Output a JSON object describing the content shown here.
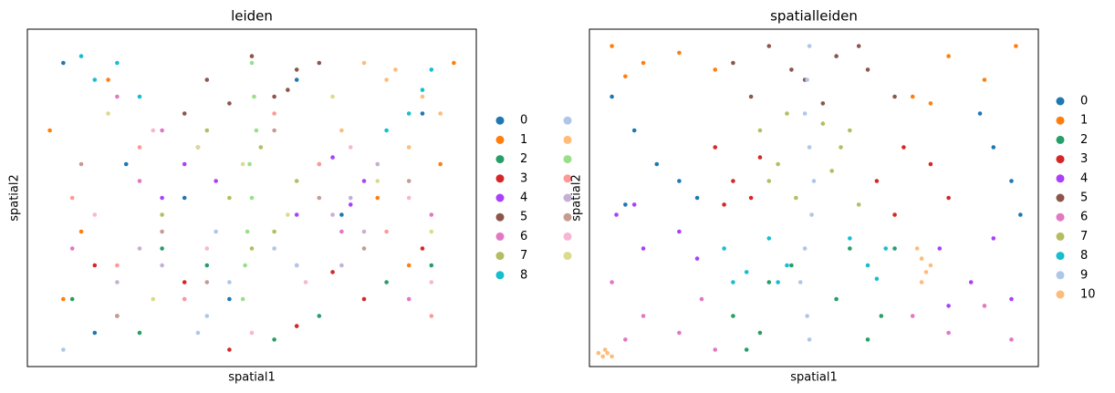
{
  "chart_data": [
    {
      "type": "scatter",
      "title": "leiden",
      "x_label": "spatial1",
      "y_label": "spatial2",
      "xlim": [
        0,
        100
      ],
      "ylim": [
        0,
        100
      ],
      "legend_columns": 2,
      "series": [
        {
          "name": "0",
          "color": "#1f77b4",
          "x": [
            8,
            22,
            45,
            70,
            88,
            15,
            60,
            35
          ],
          "values": [
            90,
            60,
            20,
            45,
            75,
            10,
            85,
            50
          ]
        },
        {
          "name": "1",
          "color": "#ff7f0e",
          "x": [
            5,
            12,
            92,
            85,
            18,
            95,
            8,
            78
          ],
          "values": [
            70,
            40,
            60,
            30,
            85,
            90,
            20,
            50
          ]
        },
        {
          "name": "2",
          "color": "#279e68",
          "x": [
            10,
            25,
            40,
            65,
            80,
            55,
            30,
            90
          ],
          "values": [
            20,
            10,
            30,
            15,
            25,
            8,
            35,
            30
          ]
        },
        {
          "name": "3",
          "color": "#d62728",
          "x": [
            20,
            35,
            60,
            75,
            88,
            45,
            15,
            68
          ],
          "values": [
            15,
            25,
            12,
            20,
            35,
            5,
            30,
            28
          ]
        },
        {
          "name": "4",
          "color": "#aa40fc",
          "x": [
            35,
            42,
            30,
            68,
            75,
            60,
            38,
            72
          ],
          "values": [
            60,
            55,
            50,
            62,
            55,
            45,
            65,
            48
          ]
        },
        {
          "name": "5",
          "color": "#8c564b",
          "x": [
            40,
            50,
            60,
            45,
            55,
            65,
            35,
            58
          ],
          "values": [
            85,
            92,
            88,
            78,
            80,
            90,
            75,
            82
          ]
        },
        {
          "name": "6",
          "color": "#e377c2",
          "x": [
            10,
            25,
            70,
            85,
            30,
            60,
            20,
            90
          ],
          "values": [
            35,
            55,
            40,
            20,
            70,
            30,
            80,
            45
          ]
        },
        {
          "name": "7",
          "color": "#b5bd61",
          "x": [
            45,
            55,
            40,
            60,
            50,
            30,
            65,
            52
          ],
          "values": [
            50,
            40,
            70,
            55,
            35,
            45,
            60,
            65
          ]
        },
        {
          "name": "8",
          "color": "#17becf",
          "x": [
            15,
            20,
            25,
            80,
            85,
            90,
            12,
            88
          ],
          "values": [
            85,
            90,
            80,
            70,
            75,
            88,
            92,
            82
          ]
        },
        {
          "name": null,
          "color": "#aec7e8",
          "x": [
            40,
            45,
            35,
            55,
            8,
            42,
            60,
            38
          ],
          "values": [
            15,
            25,
            20,
            35,
            5,
            40,
            30,
            10
          ]
        },
        {
          "name": null,
          "color": "#ffbb78",
          "x": [
            80,
            88,
            75,
            92,
            70,
            85,
            82,
            78
          ],
          "values": [
            85,
            80,
            90,
            75,
            70,
            65,
            88,
            60
          ]
        },
        {
          "name": null,
          "color": "#98df8a",
          "x": [
            50,
            50.5,
            51,
            49.5,
            50,
            49,
            48.5,
            48
          ],
          "values": [
            90,
            80,
            70,
            60,
            50,
            40,
            30,
            20
          ]
        },
        {
          "name": null,
          "color": "#ff9896",
          "x": [
            10,
            20,
            65,
            80,
            35,
            90,
            25,
            55
          ],
          "values": [
            50,
            30,
            60,
            40,
            20,
            15,
            65,
            75
          ]
        },
        {
          "name": null,
          "color": "#c5b0d5",
          "x": [
            72,
            75,
            70,
            20,
            78,
            25,
            68,
            30
          ],
          "values": [
            50,
            40,
            30,
            25,
            60,
            35,
            45,
            30
          ]
        },
        {
          "name": null,
          "color": "#c49c94",
          "x": [
            12,
            30,
            55,
            75,
            85,
            40,
            20,
            65
          ],
          "values": [
            60,
            40,
            70,
            35,
            55,
            25,
            15,
            50
          ]
        },
        {
          "name": null,
          "color": "#f7b6d2",
          "x": [
            15,
            28,
            62,
            85,
            40,
            72,
            50,
            90
          ],
          "values": [
            45,
            70,
            25,
            50,
            35,
            65,
            10,
            25
          ]
        },
        {
          "name": null,
          "color": "#dbdb8d",
          "x": [
            18,
            38,
            58,
            78,
            90,
            28,
            48,
            68
          ],
          "values": [
            75,
            65,
            45,
            55,
            40,
            20,
            60,
            80
          ]
        }
      ]
    },
    {
      "type": "scatter",
      "title": "spatialleiden",
      "x_label": "spatial1",
      "y_label": "spatial2",
      "xlim": [
        0,
        100
      ],
      "ylim": [
        0,
        100
      ],
      "legend_columns": 1,
      "series": [
        {
          "name": "0",
          "color": "#1f77b4",
          "x": [
            5,
            10,
            15,
            20,
            24,
            8,
            87,
            90,
            94,
            96
          ],
          "values": [
            80,
            70,
            60,
            55,
            50,
            48,
            75,
            65,
            55,
            45
          ]
        },
        {
          "name": "1",
          "color": "#ff7f0e",
          "x": [
            5,
            12,
            20,
            28,
            8,
            72,
            80,
            88,
            95,
            76
          ],
          "values": [
            95,
            90,
            93,
            88,
            86,
            80,
            92,
            85,
            95,
            78
          ]
        },
        {
          "name": "2",
          "color": "#279e68",
          "x": [
            32,
            38,
            45,
            55,
            62,
            68,
            40,
            58,
            35,
            65
          ],
          "values": [
            15,
            10,
            30,
            20,
            8,
            35,
            25,
            35,
            5,
            15
          ]
        },
        {
          "name": "3",
          "color": "#d62728",
          "x": [
            28,
            32,
            36,
            38,
            30,
            64,
            70,
            76,
            80,
            68
          ],
          "values": [
            65,
            55,
            50,
            62,
            48,
            55,
            65,
            60,
            50,
            45
          ]
        },
        {
          "name": "4",
          "color": "#aa40fc",
          "x": [
            6,
            12,
            20,
            24,
            10,
            78,
            85,
            90,
            94,
            80
          ],
          "values": [
            45,
            35,
            40,
            32,
            48,
            35,
            25,
            38,
            20,
            18
          ]
        },
        {
          "name": "5",
          "color": "#8c564b",
          "x": [
            32,
            40,
            48,
            55,
            62,
            68,
            36,
            52,
            60,
            45
          ],
          "values": [
            90,
            95,
            85,
            92,
            88,
            80,
            80,
            78,
            95,
            88
          ]
        },
        {
          "name": "6",
          "color": "#e377c2",
          "x": [
            5,
            12,
            20,
            28,
            8,
            72,
            80,
            88,
            94,
            25
          ],
          "values": [
            25,
            15,
            10,
            5,
            8,
            15,
            10,
            18,
            8,
            20
          ]
        },
        {
          "name": "7",
          "color": "#b5bd61",
          "x": [
            38,
            42,
            46,
            52,
            56,
            60,
            40,
            54,
            44,
            58
          ],
          "values": [
            70,
            60,
            50,
            72,
            65,
            48,
            55,
            58,
            75,
            70
          ]
        },
        {
          "name": "8",
          "color": "#17becf",
          "x": [
            30,
            35,
            40,
            44,
            32,
            58,
            62,
            66,
            64,
            42
          ],
          "values": [
            35,
            28,
            38,
            30,
            25,
            38,
            30,
            35,
            26,
            25
          ]
        },
        {
          "name": "9",
          "color": "#aec7e8",
          "x": [
            49,
            48.5,
            48,
            49,
            50,
            49.5,
            48,
            47,
            48.5,
            49
          ],
          "values": [
            95,
            85,
            75,
            65,
            55,
            45,
            35,
            25,
            15,
            8
          ]
        },
        {
          "name": "10",
          "color": "#ffbb78",
          "x": [
            73,
            74,
            75,
            74,
            76,
            2,
            3,
            4,
            5,
            3.5
          ],
          "values": [
            35,
            32,
            28,
            25,
            30,
            4,
            3,
            4,
            3,
            5
          ]
        }
      ]
    }
  ]
}
